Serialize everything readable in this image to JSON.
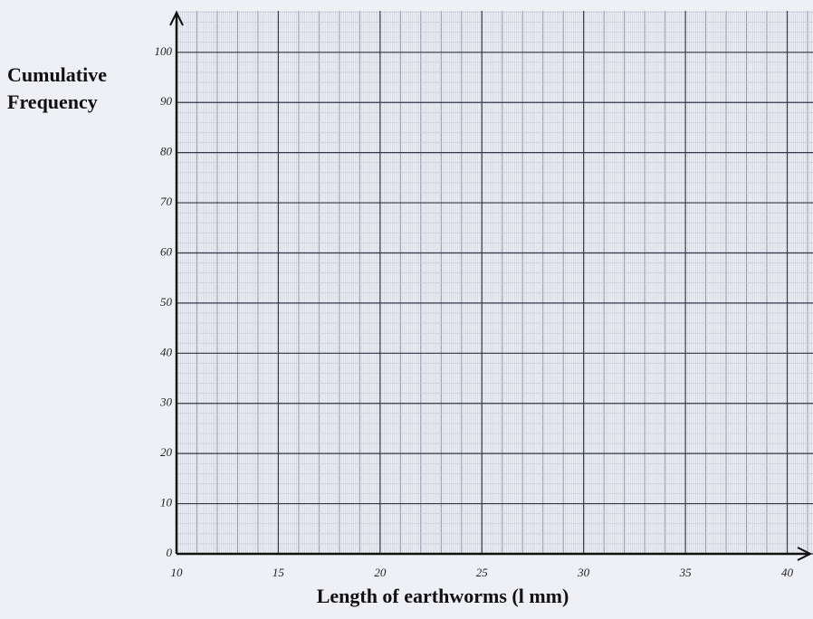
{
  "chart_data": {
    "type": "line",
    "x_label": "Length of earthworms (l mm)",
    "y_label": "Cumulative Frequency",
    "xlim": [
      10,
      41
    ],
    "xticks": [
      10,
      15,
      20,
      25,
      30,
      35,
      40
    ],
    "ylim": [
      0,
      107
    ],
    "yticks": [
      0,
      10,
      20,
      30,
      40,
      50,
      60,
      70,
      80,
      90,
      100
    ],
    "grid": true,
    "series": []
  }
}
